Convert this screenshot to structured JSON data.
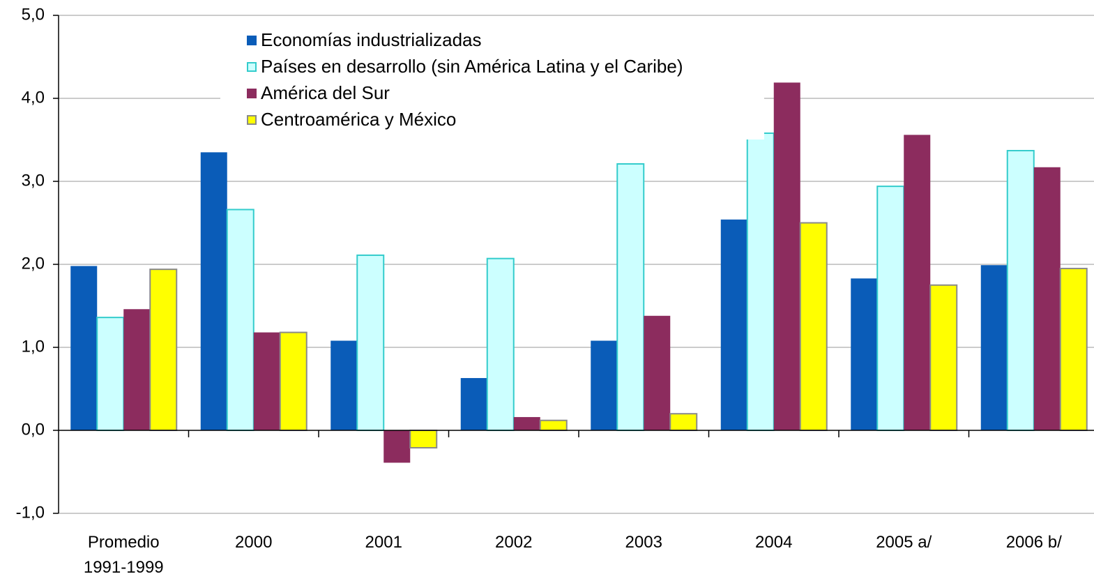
{
  "chart_data": {
    "type": "bar",
    "categories": [
      "Promedio 1991-1999",
      "2000",
      "2001",
      "2002",
      "2003",
      "2004",
      "2005 a/",
      "2006 b/"
    ],
    "series": [
      {
        "name": "Economías industrializadas",
        "color": "#0a5cb8",
        "values": [
          1.98,
          3.35,
          1.08,
          0.63,
          1.08,
          2.54,
          1.83,
          1.99
        ]
      },
      {
        "name": "Países en desarrollo (sin América Latina y el Caribe)",
        "color": "#ccffff",
        "values": [
          1.36,
          2.66,
          2.11,
          2.07,
          3.21,
          3.58,
          2.94,
          3.37
        ]
      },
      {
        "name": "América del Sur",
        "color": "#8c2c5e",
        "values": [
          1.46,
          1.18,
          -0.39,
          0.16,
          1.38,
          4.19,
          3.56,
          3.17
        ]
      },
      {
        "name": "Centroamérica y México",
        "color": "#ffff00",
        "values": [
          1.94,
          1.18,
          -0.21,
          0.12,
          0.2,
          2.5,
          1.75,
          1.95
        ]
      }
    ],
    "ylim": [
      -1,
      5
    ],
    "yticks": [
      {
        "value": -1,
        "label": "-1,0"
      },
      {
        "value": 0,
        "label": "0,0"
      },
      {
        "value": 1,
        "label": "1,0"
      },
      {
        "value": 2,
        "label": "2,0"
      },
      {
        "value": 3,
        "label": "3,0"
      },
      {
        "value": 4,
        "label": "4,0"
      },
      {
        "value": 5,
        "label": "5,0"
      }
    ],
    "grid": true
  }
}
